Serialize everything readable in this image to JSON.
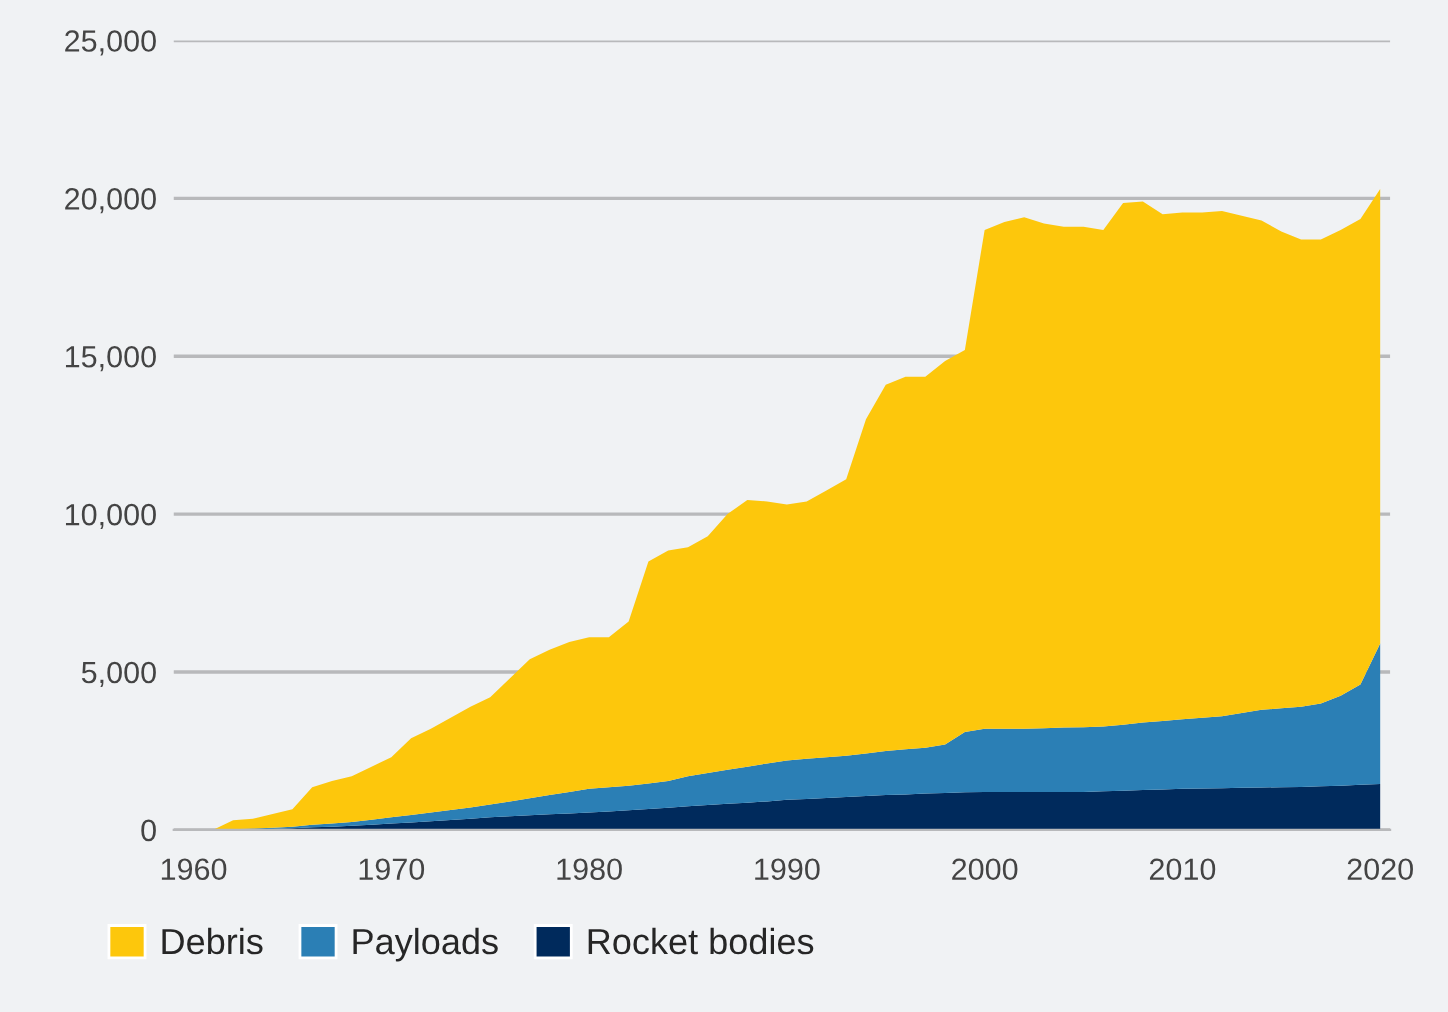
{
  "chart_data": {
    "type": "area",
    "stacked": true,
    "x": [
      1960,
      1961,
      1962,
      1963,
      1964,
      1965,
      1966,
      1967,
      1968,
      1969,
      1970,
      1971,
      1972,
      1973,
      1974,
      1975,
      1976,
      1977,
      1978,
      1979,
      1980,
      1981,
      1982,
      1983,
      1984,
      1985,
      1986,
      1987,
      1988,
      1989,
      1990,
      1991,
      1992,
      1993,
      1994,
      1995,
      1996,
      1997,
      1998,
      1999,
      2000,
      2001,
      2002,
      2003,
      2004,
      2005,
      2006,
      2007,
      2008,
      2009,
      2010,
      2011,
      2012,
      2013,
      2014,
      2015,
      2016,
      2017,
      2018,
      2019,
      2020
    ],
    "series": [
      {
        "name": "Rocket bodies",
        "color": "#002a5c",
        "values": [
          0,
          0,
          10,
          20,
          30,
          50,
          80,
          100,
          130,
          160,
          200,
          230,
          270,
          310,
          350,
          400,
          430,
          460,
          490,
          520,
          550,
          580,
          620,
          660,
          700,
          750,
          790,
          830,
          860,
          900,
          950,
          980,
          1010,
          1040,
          1070,
          1100,
          1120,
          1150,
          1170,
          1190,
          1200,
          1200,
          1200,
          1200,
          1200,
          1200,
          1220,
          1240,
          1260,
          1280,
          1300,
          1310,
          1320,
          1330,
          1340,
          1350,
          1360,
          1380,
          1400,
          1430,
          1450
        ]
      },
      {
        "name": "Payloads",
        "color": "#2b7fb5",
        "values": [
          0,
          0,
          10,
          20,
          40,
          50,
          80,
          100,
          120,
          160,
          200,
          240,
          280,
          320,
          360,
          400,
          470,
          540,
          610,
          680,
          750,
          770,
          780,
          810,
          850,
          950,
          1010,
          1070,
          1140,
          1200,
          1250,
          1270,
          1290,
          1310,
          1350,
          1400,
          1430,
          1450,
          1530,
          1910,
          2000,
          2000,
          2000,
          2020,
          2040,
          2050,
          2050,
          2090,
          2140,
          2170,
          2200,
          2240,
          2280,
          2370,
          2460,
          2500,
          2540,
          2620,
          2850,
          3170,
          4450
        ]
      },
      {
        "name": "Debris",
        "color": "#fdc70c",
        "values": [
          0,
          0,
          280,
          310,
          430,
          550,
          1190,
          1350,
          1450,
          1680,
          1900,
          2430,
          2650,
          2920,
          3190,
          3400,
          3900,
          4400,
          4600,
          4750,
          4800,
          4750,
          5200,
          7030,
          7300,
          7250,
          7500,
          8100,
          8450,
          8300,
          8100,
          8150,
          8450,
          8750,
          10580,
          11600,
          11800,
          11750,
          12150,
          12100,
          15800,
          16050,
          16200,
          15980,
          15860,
          15850,
          15730,
          16520,
          16500,
          16050,
          16050,
          16000,
          16000,
          15750,
          15500,
          15100,
          14800,
          14700,
          14750,
          14750,
          14400
        ]
      }
    ],
    "xlim": [
      1959,
      2020.5
    ],
    "xticks": [
      1960,
      1970,
      1980,
      1990,
      2000,
      2010,
      2020
    ],
    "ylim": [
      0,
      25000
    ],
    "yticks": [
      {
        "value": 0,
        "label": "0"
      },
      {
        "value": 5000,
        "label": "5,000"
      },
      {
        "value": 10000,
        "label": "10,000"
      },
      {
        "value": 15000,
        "label": "15,000"
      },
      {
        "value": 20000,
        "label": "20,000"
      },
      {
        "value": 25000,
        "label": "25,000"
      }
    ],
    "grid": "y",
    "legend": "bottom"
  }
}
